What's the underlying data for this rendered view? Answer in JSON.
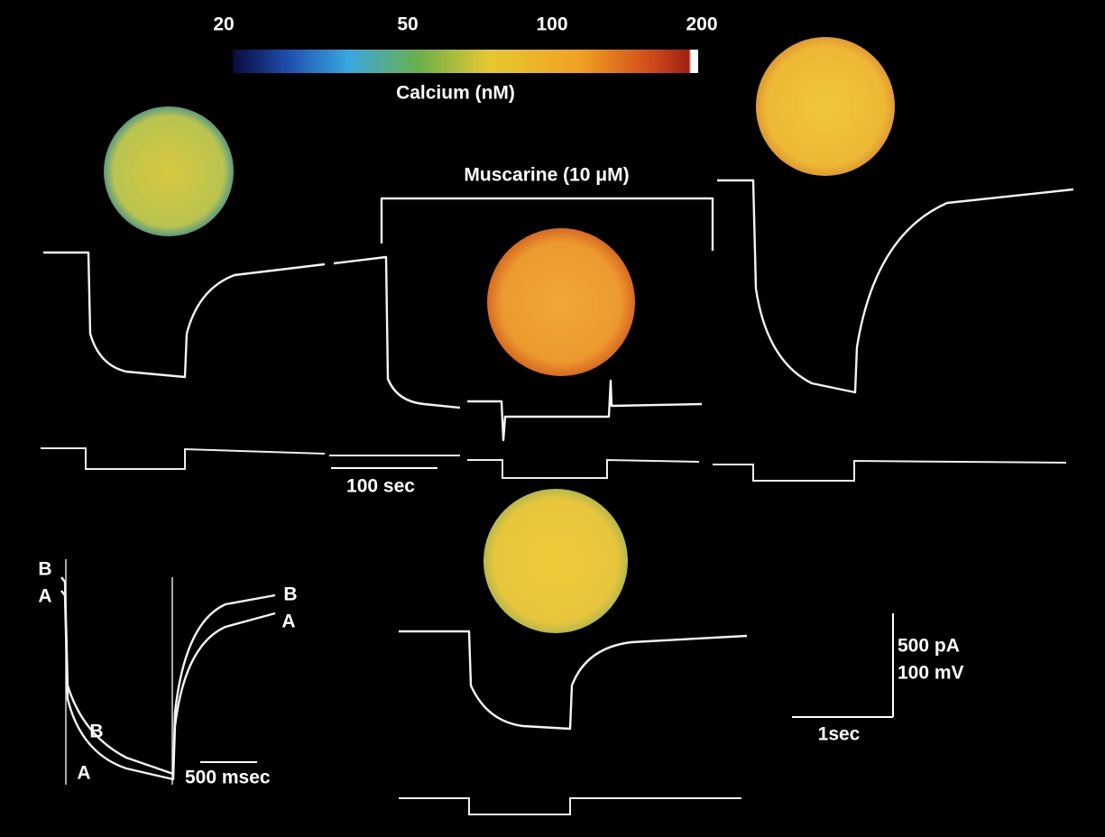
{
  "colorbar": {
    "ticks": [
      "20",
      "50",
      "100",
      "200"
    ],
    "label": "Calcium (nM)"
  },
  "muscarine_label": "Muscarine (10 μM)",
  "scale_bars": {
    "time_top": "100 sec",
    "time_inset": "500 msec",
    "current": "500 pA",
    "voltage": "100 mV",
    "time_bottom": "1sec"
  },
  "trace_labels": [
    "B",
    "A",
    "B",
    "A",
    "B",
    "A"
  ]
}
